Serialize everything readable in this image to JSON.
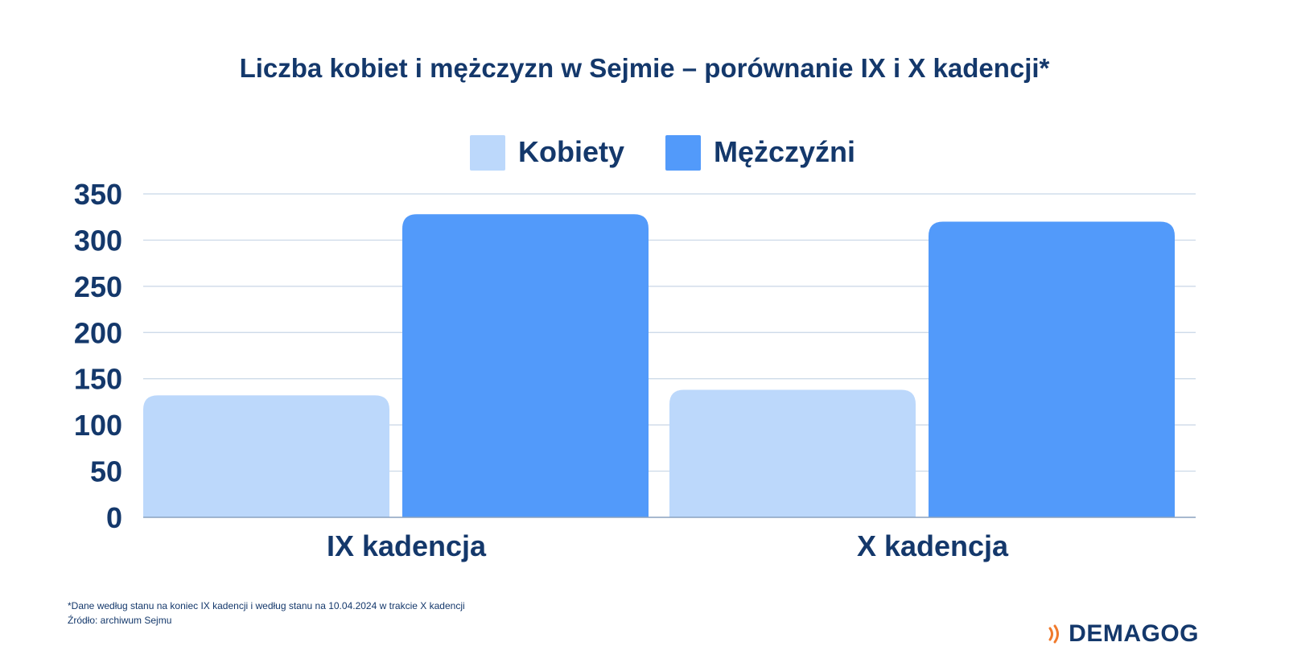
{
  "chart_data": {
    "type": "bar",
    "title": "Liczba kobiet i mężczyzn w Sejmie – porównanie IX i X kadencji*",
    "categories": [
      "IX kadencja",
      "X kadencja"
    ],
    "series": [
      {
        "name": "Kobiety",
        "values": [
          132,
          138
        ],
        "color": "#bcd8fb"
      },
      {
        "name": "Mężczyźni",
        "values": [
          328,
          320
        ],
        "color": "#529afa"
      }
    ],
    "xlabel": "",
    "ylabel": "",
    "ylim": [
      0,
      350
    ],
    "yticks": [
      0,
      50,
      100,
      150,
      200,
      250,
      300,
      350
    ],
    "grid": true,
    "legend": "top-center"
  },
  "footnote": "*Dane według stanu na koniec IX kadencji i według stanu na 10.04.2024 w trakcie X kadencji",
  "source": "Źródło: archiwum Sejmu",
  "logo": {
    "text": "DEMAGOG",
    "icon": "signal-waves-icon",
    "icon_color": "#f07a2c"
  },
  "colors": {
    "text": "#14386b",
    "grid": "#c8d6e6",
    "axis": "#8aa2bf"
  }
}
